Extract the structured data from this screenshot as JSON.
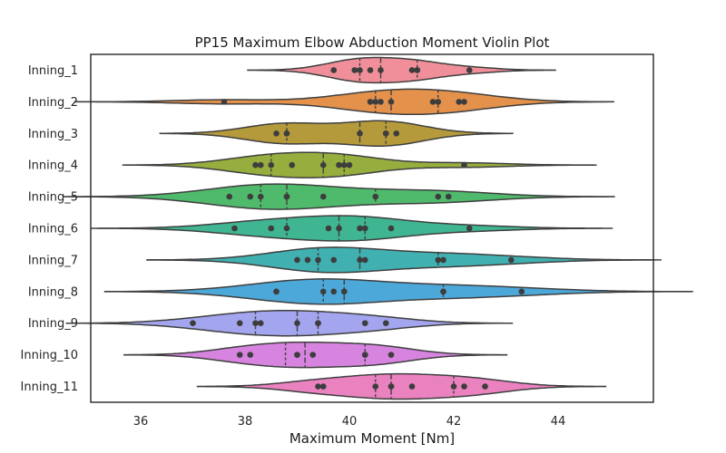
{
  "chart_data": {
    "type": "violin",
    "orientation": "horizontal",
    "title": "PP15 Maximum Elbow Abduction Moment Violin Plot",
    "xlabel": "Maximum Moment [Nm]",
    "ylabel": "",
    "xlim": [
      35,
      46
    ],
    "xticks": [
      36,
      38,
      40,
      42,
      44
    ],
    "grid": false,
    "categories": [
      "Inning_1",
      "Inning_2",
      "Inning_3",
      "Inning_4",
      "Inning_5",
      "Inning_6",
      "Inning_7",
      "Inning_8",
      "Inning_9",
      "Inning_10",
      "Inning_11"
    ],
    "series": [
      {
        "colour": "#f08f99",
        "points": [
          39.7,
          40.1,
          40.2,
          40.4,
          40.6,
          41.2,
          41.3,
          41.3,
          42.3
        ]
      },
      {
        "colour": "#e3914b",
        "points": [
          37.6,
          40.4,
          40.5,
          40.6,
          40.8,
          41.6,
          41.7,
          42.1,
          42.2
        ]
      },
      {
        "colour": "#b59a3c",
        "points": [
          38.6,
          38.8,
          38.8,
          40.2,
          40.7,
          40.7,
          40.9
        ]
      },
      {
        "colour": "#95ae3d",
        "points": [
          38.2,
          38.3,
          38.5,
          38.9,
          39.5,
          39.8,
          39.9,
          40.0,
          42.2
        ]
      },
      {
        "colour": "#4fba6c",
        "points": [
          37.7,
          38.1,
          38.3,
          38.8,
          38.8,
          39.5,
          40.5,
          41.7,
          41.9
        ]
      },
      {
        "colour": "#3fb592",
        "points": [
          37.8,
          38.5,
          38.8,
          39.6,
          39.8,
          40.2,
          40.3,
          40.8,
          42.3
        ]
      },
      {
        "colour": "#41b0b1",
        "points": [
          39.0,
          39.2,
          39.4,
          39.7,
          40.2,
          40.3,
          41.7,
          41.8,
          43.1
        ]
      },
      {
        "colour": "#4ca8d9",
        "points": [
          38.6,
          38.6,
          39.5,
          39.7,
          39.9,
          39.9,
          41.8,
          41.8,
          43.3
        ]
      },
      {
        "colour": "#a3a5ee",
        "points": [
          37.0,
          37.9,
          38.2,
          38.3,
          39.0,
          39.4,
          39.4,
          40.3,
          40.7
        ]
      },
      {
        "colour": "#d784e0",
        "points": [
          37.9,
          38.1,
          39.0,
          39.0,
          39.3,
          40.3,
          40.3,
          40.8
        ]
      },
      {
        "colour": "#ea82c0",
        "points": [
          39.4,
          39.5,
          40.5,
          40.8,
          40.8,
          41.2,
          42.0,
          42.2,
          42.6
        ]
      }
    ]
  }
}
